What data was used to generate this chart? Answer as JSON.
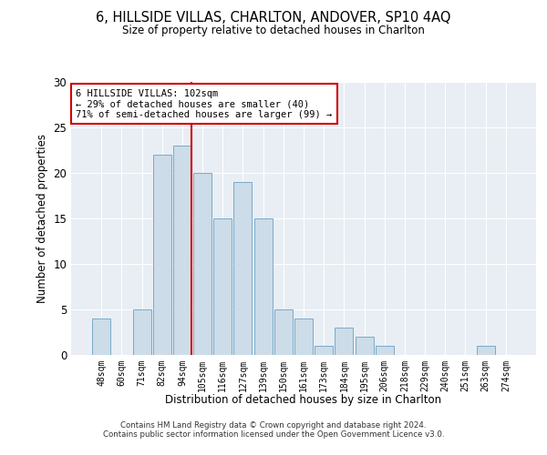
{
  "title": "6, HILLSIDE VILLAS, CHARLTON, ANDOVER, SP10 4AQ",
  "subtitle": "Size of property relative to detached houses in Charlton",
  "xlabel": "Distribution of detached houses by size in Charlton",
  "ylabel": "Number of detached properties",
  "categories": [
    "48sqm",
    "60sqm",
    "71sqm",
    "82sqm",
    "94sqm",
    "105sqm",
    "116sqm",
    "127sqm",
    "139sqm",
    "150sqm",
    "161sqm",
    "173sqm",
    "184sqm",
    "195sqm",
    "206sqm",
    "218sqm",
    "229sqm",
    "240sqm",
    "251sqm",
    "263sqm",
    "274sqm"
  ],
  "values": [
    4,
    0,
    5,
    22,
    23,
    20,
    15,
    19,
    15,
    5,
    4,
    1,
    3,
    2,
    1,
    0,
    0,
    0,
    0,
    1,
    0
  ],
  "bar_color": "#ccdce8",
  "bar_edge_color": "#7aaac8",
  "vline_x_index": 4,
  "vline_color": "#cc0000",
  "annotation_lines": [
    "6 HILLSIDE VILLAS: 102sqm",
    "← 29% of detached houses are smaller (40)",
    "71% of semi-detached houses are larger (99) →"
  ],
  "annotation_box_color": "#cc0000",
  "ylim": [
    0,
    30
  ],
  "yticks": [
    0,
    5,
    10,
    15,
    20,
    25,
    30
  ],
  "plot_bg_color": "#e8eef4",
  "fig_bg_color": "#ffffff",
  "footer_line1": "Contains HM Land Registry data © Crown copyright and database right 2024.",
  "footer_line2": "Contains public sector information licensed under the Open Government Licence v3.0."
}
